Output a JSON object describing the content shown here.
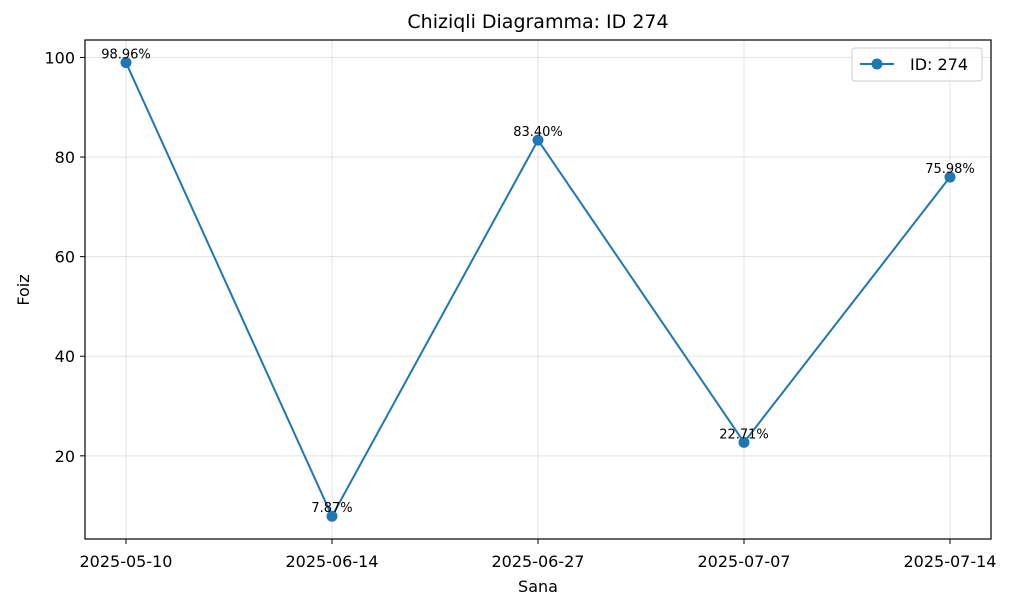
{
  "chart_data": {
    "type": "line",
    "title": "Chiziqli Diagramma: ID 274",
    "xlabel": "Sana",
    "ylabel": "Foiz",
    "categories": [
      "2025-05-10",
      "2025-06-14",
      "2025-06-27",
      "2025-07-07",
      "2025-07-14"
    ],
    "series": [
      {
        "name": "ID: 274",
        "values": [
          98.96,
          7.87,
          83.4,
          22.71,
          75.98
        ],
        "labels": [
          "98.96%",
          "7.87%",
          "83.40%",
          "22.71%",
          "75.98%"
        ],
        "color": "#1f77b4"
      }
    ],
    "ylim": [
      3.3,
      103.5
    ],
    "yticks": [
      20,
      40,
      60,
      80,
      100
    ],
    "grid": true,
    "legend_position": "top-right"
  }
}
